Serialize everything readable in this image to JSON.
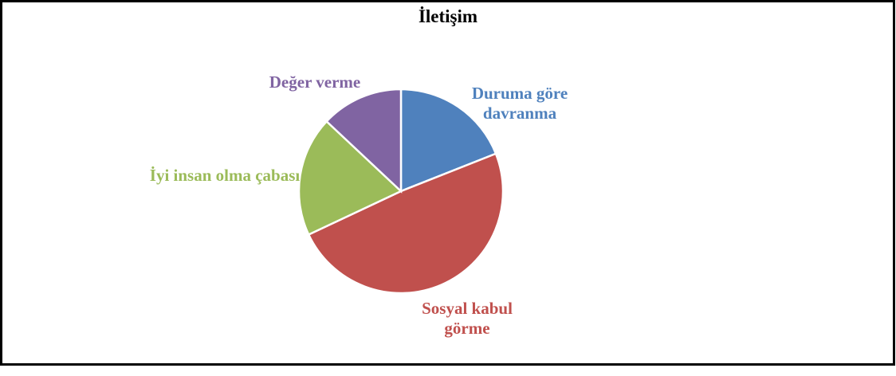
{
  "chart_data": {
    "type": "pie",
    "title": "İletişim",
    "categories": [
      "Duruma göre davranma",
      "Sosyal kabul görme",
      "İyi insan olma çabası",
      "Değer verme"
    ],
    "values": [
      19,
      49,
      19,
      13
    ],
    "colors": [
      "#4f81bd",
      "#c0504d",
      "#9bbb59",
      "#8064a2"
    ]
  }
}
